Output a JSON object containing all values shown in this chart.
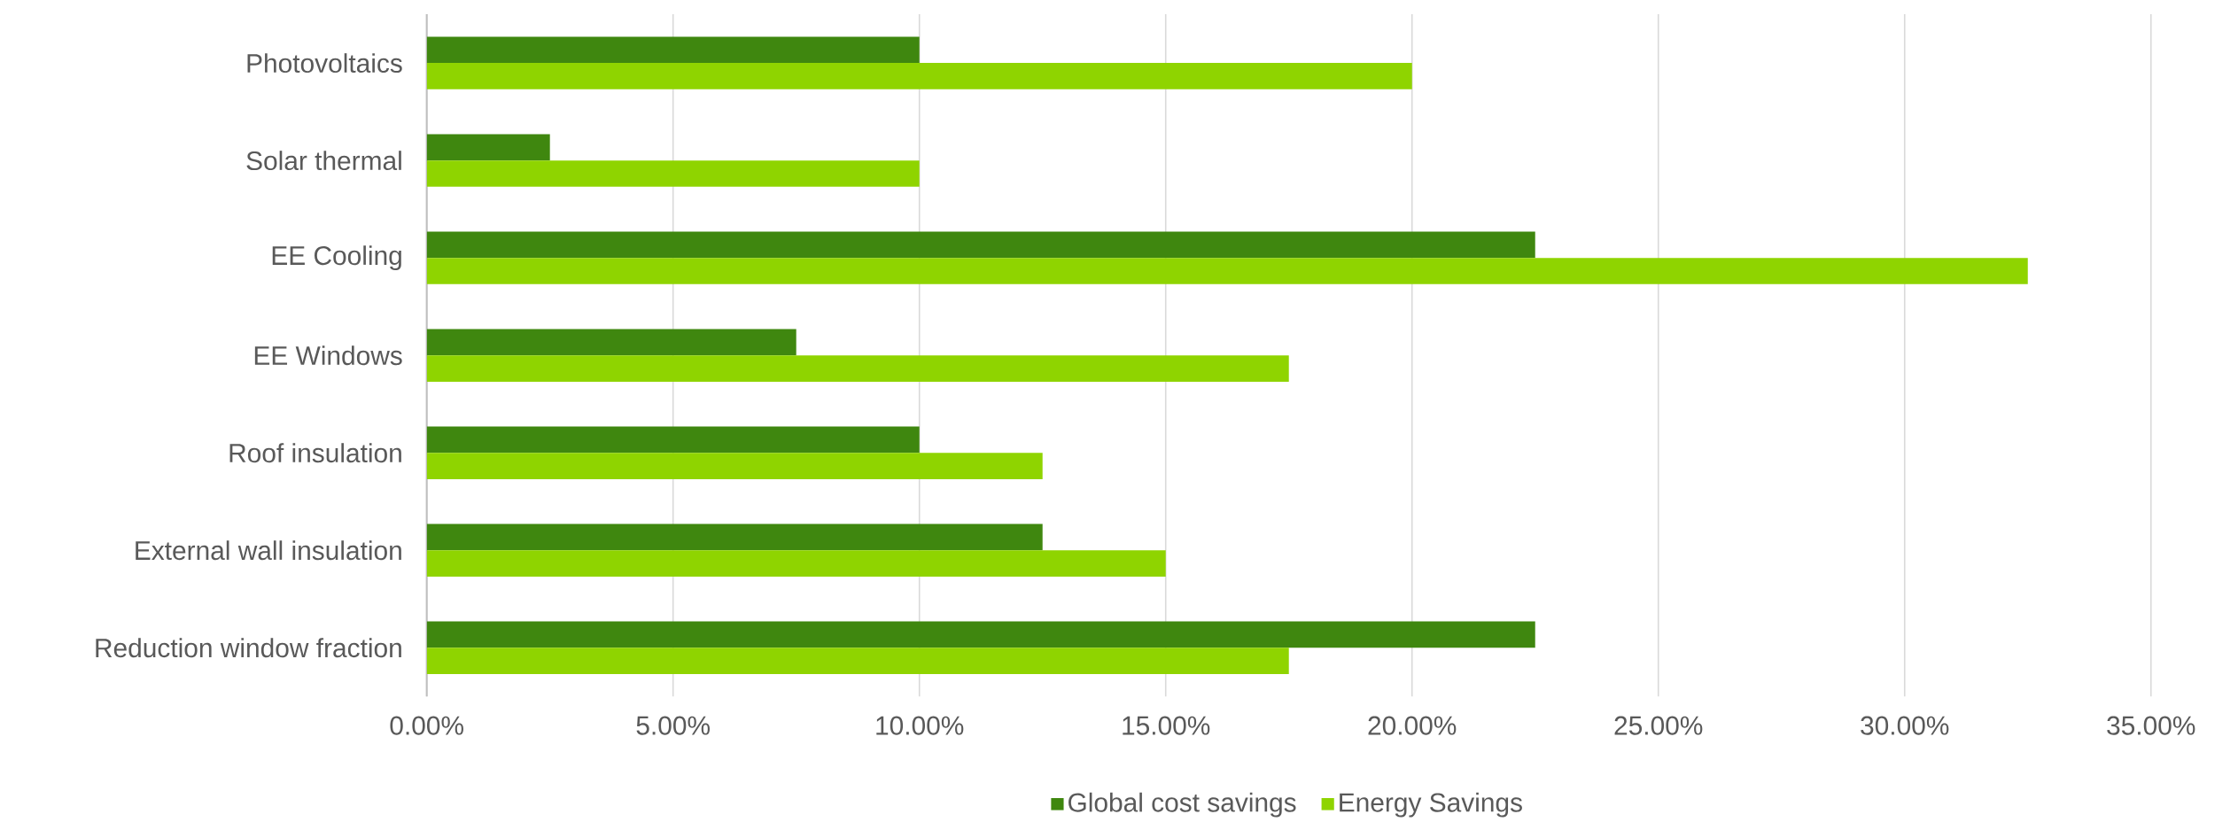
{
  "chart_data": {
    "type": "bar",
    "orientation": "horizontal",
    "categories": [
      "Photovoltaics",
      "Solar thermal",
      "EE Cooling",
      "EE Windows",
      "Roof insulation",
      "External wall insulation",
      "Reduction window fraction"
    ],
    "series": [
      {
        "name": "Global cost savings",
        "color": "#3f870f",
        "values": [
          10,
          2.5,
          22.5,
          7.5,
          10,
          12.5,
          22.5
        ]
      },
      {
        "name": "Energy Savings",
        "color": "#8fd400",
        "values": [
          20,
          10,
          32.5,
          17.5,
          12.5,
          15,
          17.5
        ]
      }
    ],
    "xlim": [
      0,
      35
    ],
    "xticks": [
      {
        "value": 0,
        "label": "0.00%"
      },
      {
        "value": 5,
        "label": "5.00%"
      },
      {
        "value": 10,
        "label": "10.00%"
      },
      {
        "value": 15,
        "label": "15.00%"
      },
      {
        "value": 20,
        "label": "20.00%"
      },
      {
        "value": 25,
        "label": "25.00%"
      },
      {
        "value": 30,
        "label": "30.00%"
      },
      {
        "value": 35,
        "label": "35.00%"
      }
    ],
    "grid": "x",
    "legend": "bottom"
  }
}
